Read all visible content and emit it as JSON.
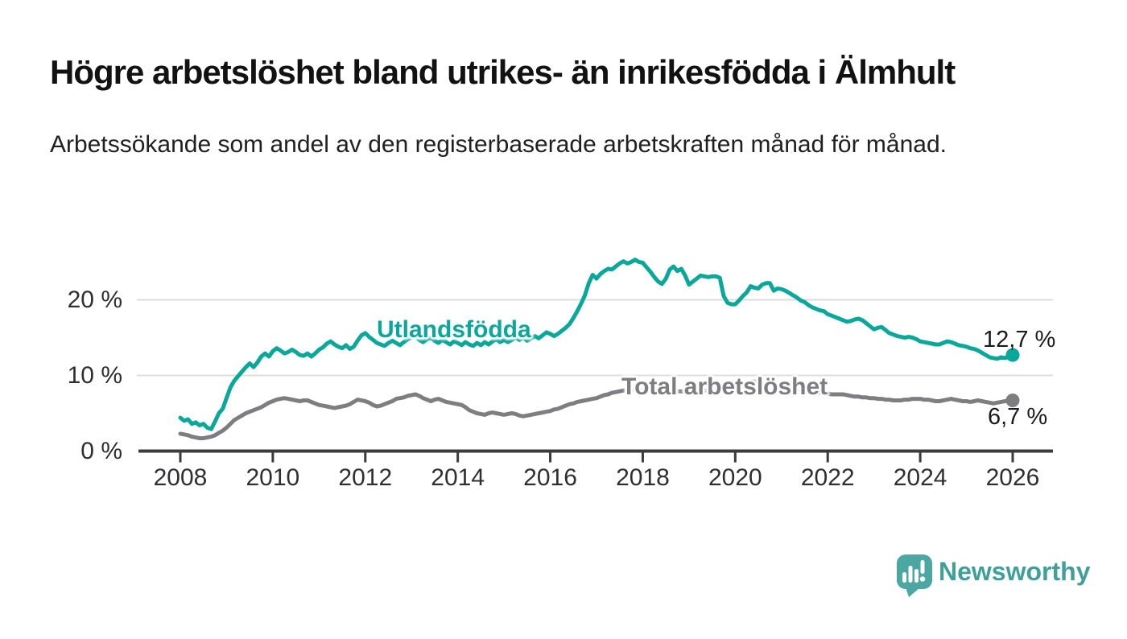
{
  "chart_data": {
    "type": "line",
    "title": "Högre arbetslöshet bland utrikes- än inrikesfödda i Älmhult",
    "subtitle": "Arbetssökande som andel av den registerbaserade arbetskraften månad för månad.",
    "x_unit": "month",
    "x_range": [
      "2008-01",
      "2026-01"
    ],
    "x_tick_labels": [
      "2008",
      "2010",
      "2012",
      "2014",
      "2016",
      "2018",
      "2020",
      "2022",
      "2024",
      "2026"
    ],
    "y_ticks": [
      {
        "value": 0,
        "label": "0 %"
      },
      {
        "value": 10,
        "label": "10 %"
      },
      {
        "value": 20,
        "label": "20 %"
      }
    ],
    "ylim": [
      0,
      26.5
    ],
    "grid": "horizontal-only",
    "legend": "inline-labels-on-lines",
    "series": [
      {
        "name": "Utlandsfödda",
        "color": "#0aa79b",
        "end_value": 12.7,
        "end_label": "12,7 %",
        "values": [
          4.4,
          4.0,
          4.2,
          3.6,
          3.8,
          3.4,
          3.6,
          3.1,
          2.9,
          3.9,
          5.0,
          5.6,
          7.0,
          8.4,
          9.3,
          9.9,
          10.5,
          11.1,
          11.6,
          11.1,
          11.7,
          12.5,
          12.9,
          12.5,
          13.2,
          13.6,
          13.3,
          12.9,
          13.1,
          13.4,
          13.1,
          12.7,
          12.6,
          12.9,
          12.5,
          12.9,
          13.4,
          13.7,
          14.2,
          14.5,
          14.1,
          13.8,
          13.6,
          14.0,
          13.5,
          13.8,
          14.6,
          15.3,
          15.6,
          15.1,
          14.7,
          14.3,
          14.1,
          13.9,
          14.3,
          14.6,
          14.3,
          14.0,
          14.4,
          14.8,
          15.0,
          15.2,
          14.7,
          14.4,
          14.8,
          15.0,
          14.6,
          14.3,
          14.7,
          14.4,
          14.1,
          14.5,
          14.3,
          14.0,
          14.4,
          14.1,
          13.9,
          14.3,
          14.0,
          14.4,
          14.1,
          14.5,
          14.8,
          14.4,
          14.7,
          14.4,
          14.7,
          15.0,
          14.7,
          15.0,
          14.6,
          14.9,
          15.2,
          14.9,
          15.3,
          15.7,
          15.5,
          15.2,
          15.5,
          15.9,
          16.3,
          16.8,
          17.6,
          18.5,
          19.5,
          20.6,
          22.2,
          23.3,
          22.8,
          23.4,
          23.8,
          24.1,
          24.0,
          24.4,
          24.8,
          25.1,
          24.8,
          25.0,
          25.3,
          25.0,
          24.9,
          24.3,
          23.7,
          23.0,
          22.4,
          22.1,
          22.8,
          24.0,
          24.4,
          23.8,
          24.1,
          23.2,
          22.0,
          22.4,
          22.8,
          23.2,
          23.1,
          23.0,
          23.1,
          23.1,
          22.9,
          20.5,
          19.6,
          19.4,
          19.4,
          19.9,
          20.5,
          21.0,
          21.8,
          21.6,
          21.5,
          22.0,
          22.2,
          22.2,
          21.2,
          21.5,
          21.4,
          21.2,
          20.9,
          20.6,
          20.3,
          19.9,
          19.7,
          19.3,
          19.0,
          18.8,
          18.6,
          18.5,
          18.1,
          17.9,
          17.7,
          17.5,
          17.3,
          17.1,
          17.2,
          17.4,
          17.5,
          17.3,
          16.9,
          16.5,
          16.1,
          16.3,
          16.4,
          16.0,
          15.6,
          15.4,
          15.2,
          15.1,
          15.0,
          15.1,
          15.0,
          14.8,
          14.5,
          14.4,
          14.3,
          14.2,
          14.1,
          14.1,
          14.3,
          14.5,
          14.4,
          14.2,
          14.0,
          13.9,
          13.8,
          13.6,
          13.5,
          13.3,
          13.0,
          12.7,
          12.4,
          12.3,
          12.2,
          12.4,
          12.3,
          12.5,
          12.7
        ]
      },
      {
        "name": "Total arbetslöshet",
        "color": "#7d7d82",
        "end_value": 6.7,
        "end_label": "6,7 %",
        "values": [
          2.3,
          2.2,
          2.1,
          1.9,
          1.8,
          1.7,
          1.7,
          1.8,
          1.9,
          2.1,
          2.4,
          2.7,
          3.1,
          3.6,
          4.1,
          4.4,
          4.7,
          5.0,
          5.2,
          5.4,
          5.6,
          5.8,
          6.1,
          6.4,
          6.6,
          6.8,
          6.9,
          7.0,
          6.9,
          6.8,
          6.7,
          6.6,
          6.7,
          6.7,
          6.5,
          6.3,
          6.1,
          6.0,
          5.9,
          5.8,
          5.7,
          5.8,
          5.9,
          6.0,
          6.2,
          6.5,
          6.8,
          6.7,
          6.6,
          6.4,
          6.1,
          5.9,
          6.0,
          6.2,
          6.4,
          6.6,
          6.9,
          7.0,
          7.1,
          7.3,
          7.4,
          7.5,
          7.3,
          7.0,
          6.8,
          6.6,
          6.8,
          6.9,
          6.7,
          6.5,
          6.4,
          6.3,
          6.2,
          6.1,
          5.8,
          5.4,
          5.2,
          5.0,
          4.9,
          4.8,
          5.0,
          5.1,
          5.0,
          4.9,
          4.8,
          4.9,
          5.0,
          4.9,
          4.7,
          4.6,
          4.7,
          4.8,
          4.9,
          5.0,
          5.1,
          5.2,
          5.3,
          5.5,
          5.6,
          5.8,
          6.0,
          6.2,
          6.3,
          6.5,
          6.6,
          6.7,
          6.8,
          6.9,
          7.0,
          7.2,
          7.4,
          7.5,
          7.7,
          7.8,
          7.9,
          8.0,
          8.0,
          8.1,
          8.1,
          8.2,
          8.2,
          8.1,
          8.0,
          8.0,
          7.9,
          7.9,
          8.0,
          8.1,
          8.0,
          7.9,
          7.9,
          7.8,
          7.8,
          7.8,
          7.9,
          7.9,
          8.0,
          8.0,
          8.1,
          8.1,
          8.2,
          8.2,
          8.3,
          8.3,
          8.4,
          8.5,
          8.8,
          9.0,
          9.1,
          9.2,
          9.1,
          9.0,
          8.9,
          8.8,
          8.7,
          8.6,
          8.5,
          8.4,
          8.3,
          8.2,
          8.1,
          8.0,
          7.9,
          7.8,
          7.8,
          7.7,
          7.7,
          7.6,
          7.6,
          7.5,
          7.5,
          7.5,
          7.5,
          7.4,
          7.3,
          7.2,
          7.2,
          7.1,
          7.1,
          7.0,
          7.0,
          6.9,
          6.9,
          6.8,
          6.8,
          6.7,
          6.7,
          6.7,
          6.8,
          6.8,
          6.9,
          6.9,
          6.9,
          6.8,
          6.8,
          6.7,
          6.6,
          6.6,
          6.7,
          6.8,
          6.9,
          6.8,
          6.7,
          6.6,
          6.6,
          6.5,
          6.6,
          6.7,
          6.6,
          6.5,
          6.4,
          6.3,
          6.4,
          6.5,
          6.6,
          6.7,
          6.7
        ]
      }
    ]
  },
  "footer": {
    "brand": "Newsworthy",
    "logo_icon": "speech-bubble-bar-chart",
    "logo_color": "#4ca7a2"
  },
  "colors": {
    "accent_teal": "#0aa79b",
    "line_gray": "#7d7d82",
    "axis": "#3b3b3b",
    "gridline": "#dcdcdc",
    "text_dark": "#1a1a1a",
    "tick_text": "#2e2e33"
  }
}
